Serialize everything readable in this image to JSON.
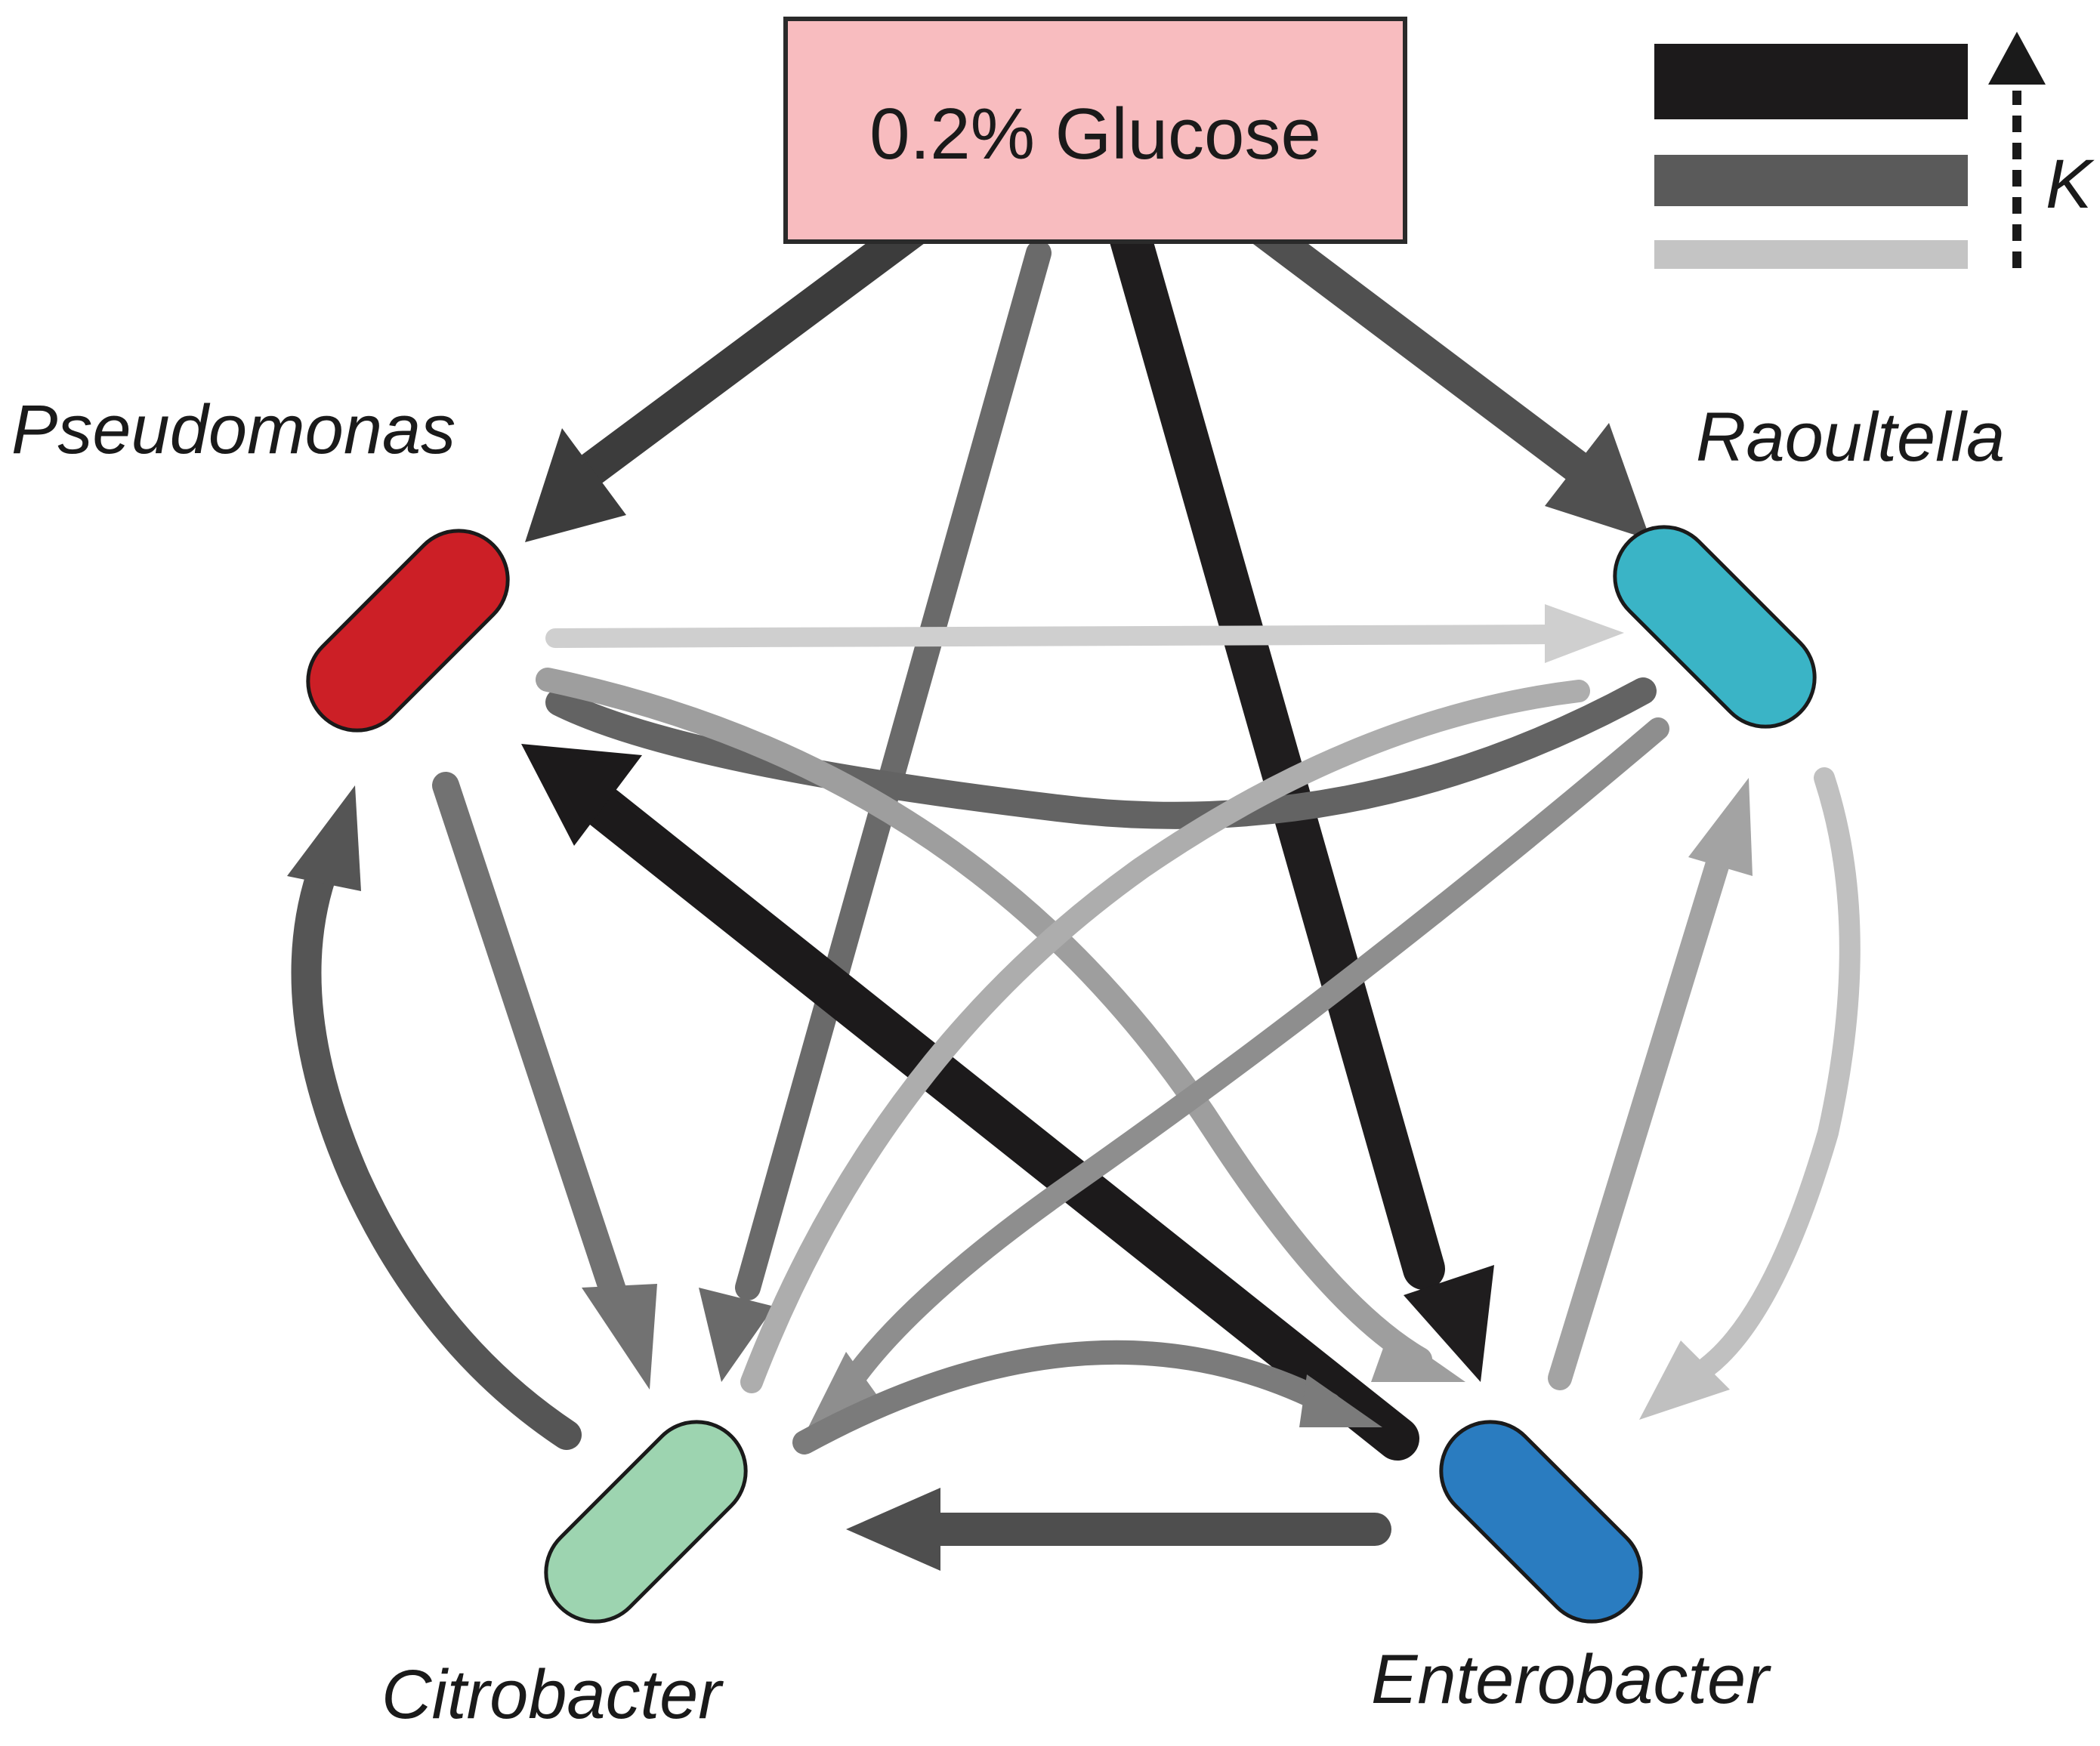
{
  "source": {
    "label": "0.2% Glucose",
    "fill": "#f8bcbf",
    "stroke": "#2a2a2a"
  },
  "species": [
    {
      "id": "pseudomonas",
      "label": "Pseudomonas",
      "color": "#cc1f26"
    },
    {
      "id": "raoultella",
      "label": "Raoultella",
      "color": "#3ab4c6"
    },
    {
      "id": "citrobacter",
      "label": "Citrobacter",
      "color": "#9dd4b0"
    },
    {
      "id": "enterobacter",
      "label": "Enterobacter",
      "color": "#2a7cc0"
    }
  ],
  "legend": {
    "label": "K",
    "levels": [
      {
        "name": "strong",
        "color": "#1c1a1b"
      },
      {
        "name": "medium",
        "color": "#5a5a5a"
      },
      {
        "name": "weak",
        "color": "#c4c4c4"
      }
    ]
  },
  "edges": [
    {
      "from": "glucose",
      "to": "pseudomonas",
      "strength": "strong",
      "color": "#3c3c3c"
    },
    {
      "from": "glucose",
      "to": "citrobacter",
      "strength": "medium",
      "color": "#6a6a6a"
    },
    {
      "from": "glucose",
      "to": "enterobacter",
      "strength": "strong",
      "color": "#1f1d1e"
    },
    {
      "from": "glucose",
      "to": "raoultella",
      "strength": "strong",
      "color": "#505050"
    },
    {
      "from": "pseudomonas",
      "to": "raoultella",
      "strength": "weak",
      "color": "#cfcfcf"
    },
    {
      "from": "raoultella",
      "to": "pseudomonas",
      "strength": "medium",
      "color": "#636363"
    },
    {
      "from": "pseudomonas",
      "to": "enterobacter",
      "strength": "weak",
      "color": "#9e9e9e"
    },
    {
      "from": "pseudomonas",
      "to": "citrobacter",
      "strength": "medium",
      "color": "#727272"
    },
    {
      "from": "citrobacter",
      "to": "pseudomonas",
      "strength": "medium",
      "color": "#555555"
    },
    {
      "from": "enterobacter",
      "to": "pseudomonas",
      "strength": "strong",
      "color": "#1c1a1b"
    },
    {
      "from": "citrobacter",
      "to": "raoultella",
      "strength": "weak",
      "color": "#adadad"
    },
    {
      "from": "raoultella",
      "to": "citrobacter",
      "strength": "weak",
      "color": "#8e8e8e"
    },
    {
      "from": "enterobacter",
      "to": "raoultella",
      "strength": "weak",
      "color": "#a3a3a3"
    },
    {
      "from": "raoultella",
      "to": "enterobacter",
      "strength": "weak",
      "color": "#c0c0c0"
    },
    {
      "from": "enterobacter",
      "to": "citrobacter",
      "strength": "medium",
      "color": "#4e4e4e"
    },
    {
      "from": "citrobacter",
      "to": "enterobacter",
      "strength": "medium",
      "color": "#7b7b7b"
    }
  ]
}
